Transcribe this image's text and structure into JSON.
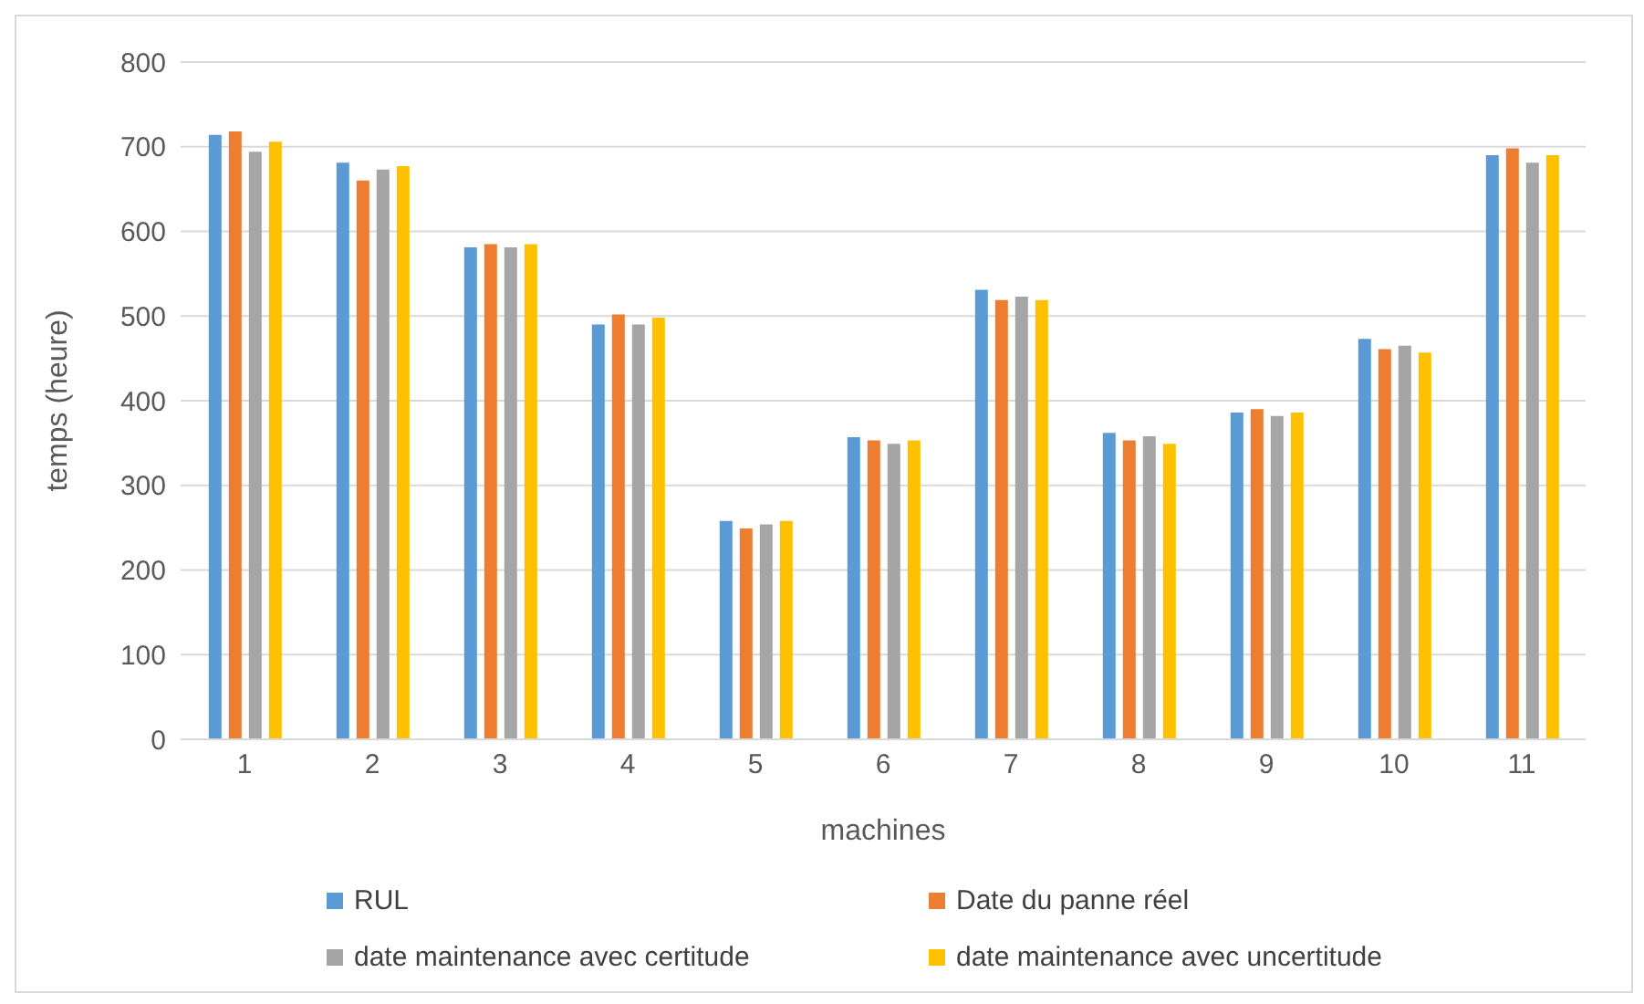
{
  "chart_data": {
    "type": "bar",
    "xlabel": "machines",
    "ylabel": "temps (heure)",
    "categories": [
      "1",
      "2",
      "3",
      "4",
      "5",
      "6",
      "7",
      "8",
      "9",
      "10",
      "11"
    ],
    "series": [
      {
        "name": "RUL",
        "color": "#5b9bd5",
        "values": [
          714,
          681,
          581,
          490,
          258,
          357,
          531,
          362,
          386,
          473,
          690
        ]
      },
      {
        "name": "Date du panne réel",
        "color": "#ed7d31",
        "values": [
          718,
          660,
          585,
          502,
          249,
          353,
          519,
          353,
          390,
          461,
          698
        ]
      },
      {
        "name": "date maintenance avec certitude",
        "color": "#a5a5a5",
        "values": [
          694,
          673,
          581,
          490,
          254,
          349,
          523,
          358,
          382,
          465,
          681
        ]
      },
      {
        "name": "date maintenance avec uncertitude",
        "color": "#ffc000",
        "values": [
          706,
          677,
          585,
          498,
          258,
          353,
          519,
          349,
          386,
          457,
          690
        ]
      }
    ],
    "ylim": [
      0,
      800
    ],
    "yticks": [
      0,
      100,
      200,
      300,
      400,
      500,
      600,
      700,
      800
    ],
    "grid": "y",
    "legend": "bottom"
  }
}
